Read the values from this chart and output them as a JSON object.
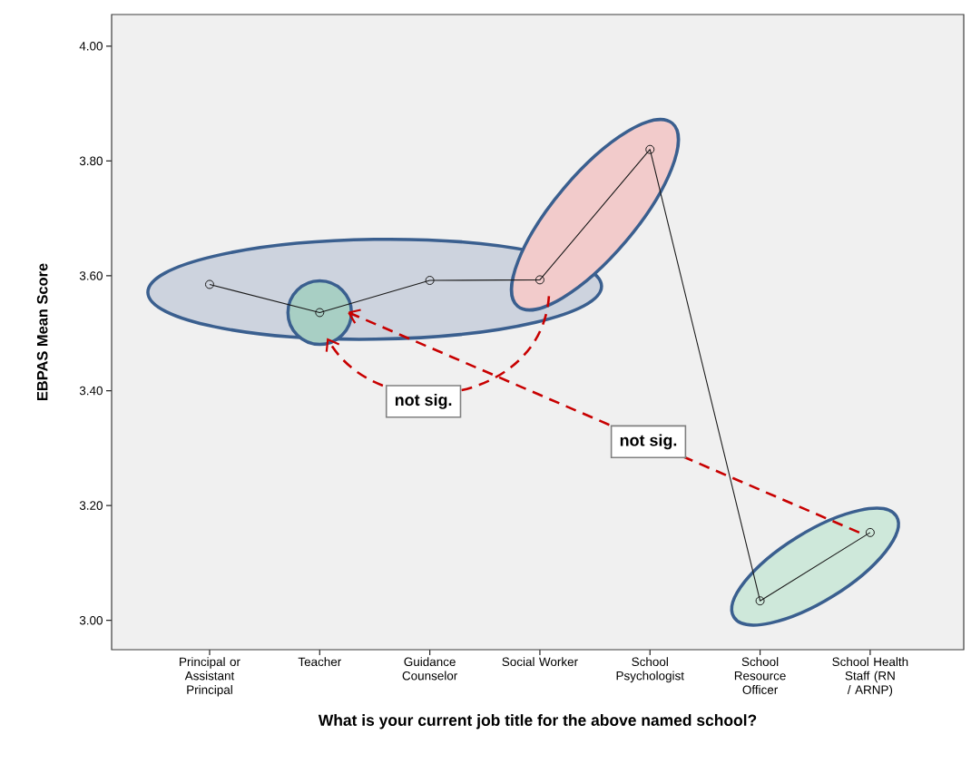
{
  "chart_data": {
    "type": "line",
    "xlabel": "What is your current job title for the above named school?",
    "ylabel": "EBPAS Mean Score",
    "categories": [
      "Principal or Assistant Principal",
      "Teacher",
      "Guidance Counselor",
      "Social Worker",
      "School Psychologist",
      "School Resource Officer",
      "School Health Staff (RN / ARNP)"
    ],
    "values": [
      3.585,
      3.536,
      3.592,
      3.593,
      3.82,
      3.034,
      3.153
    ],
    "color": "#1a1a1a",
    "marker": "circle",
    "line_style": "solid",
    "ylim": [
      2.949,
      4.055
    ],
    "yticks": [
      {
        "value": 3.0,
        "label": "3.00"
      },
      {
        "value": 3.2,
        "label": "3.20"
      },
      {
        "value": 3.4,
        "label": "3.40"
      },
      {
        "value": 3.6,
        "label": "3.60"
      },
      {
        "value": 3.8,
        "label": "3.80"
      },
      {
        "value": 4.0,
        "label": "4.00"
      }
    ],
    "annotations": [
      "not sig.",
      "not sig."
    ]
  }
}
